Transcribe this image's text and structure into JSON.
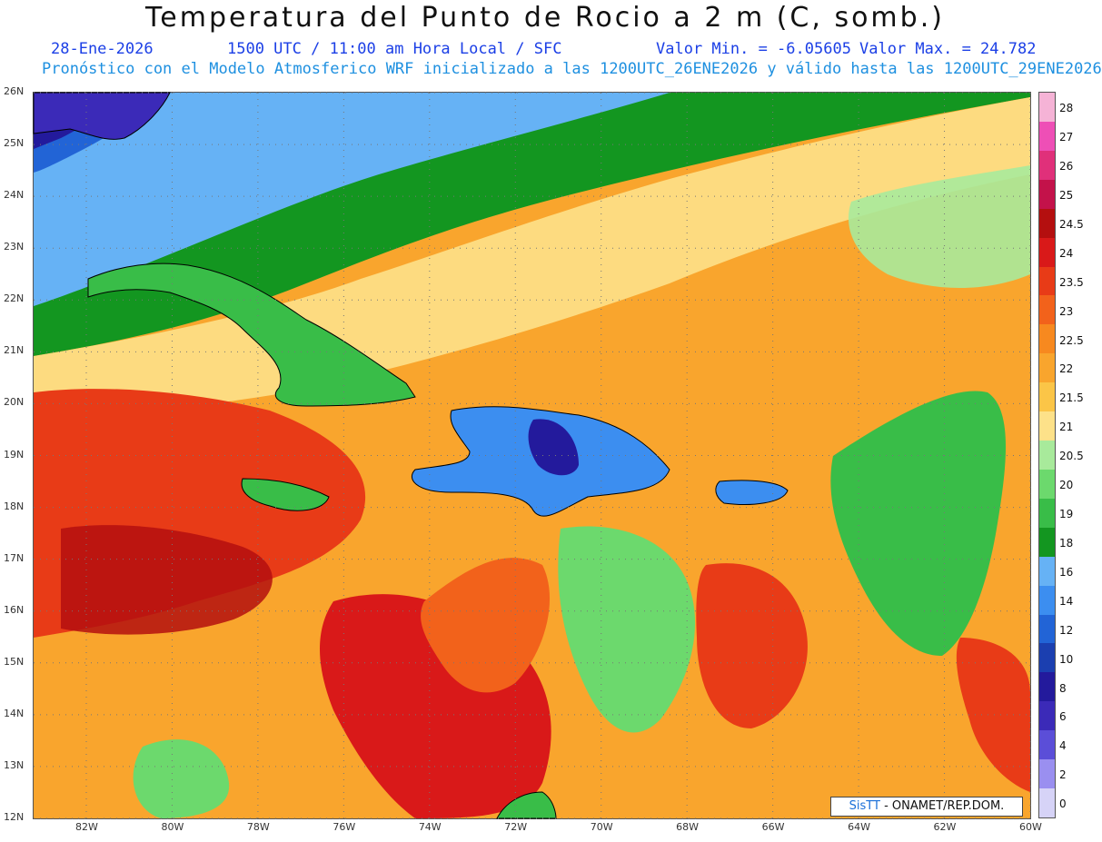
{
  "title": "Temperatura del Punto de Rocio a 2 m (C, somb.)",
  "info_line": {
    "date": "28-Ene-2026",
    "time": "1500 UTC / 11:00 am Hora Local / SFC",
    "min": "Valor Min. = -6.05605",
    "max": "Valor Max. = 24.782"
  },
  "model_line": "Pronóstico con el Modelo Atmosferico WRF inicializado a las 1200UTC_26ENE2026 y válido hasta las  1200UTC_29ENE2026",
  "map": {
    "lat_labels": [
      "26N",
      "25N",
      "24N",
      "23N",
      "22N",
      "21N",
      "20N",
      "19N",
      "18N",
      "17N",
      "16N",
      "15N",
      "14N",
      "13N",
      "12N"
    ],
    "lon_labels": [
      "82W",
      "80W",
      "78W",
      "76W",
      "74W",
      "72W",
      "70W",
      "68W",
      "66W",
      "64W",
      "62W",
      "60W"
    ]
  },
  "colorbar": {
    "labels": [
      "28",
      "27",
      "26",
      "25",
      "24.5",
      "24",
      "23.5",
      "23",
      "22.5",
      "22",
      "21.5",
      "21",
      "20.5",
      "20",
      "19",
      "18",
      "16",
      "14",
      "12",
      "10",
      "8",
      "6",
      "4",
      "2",
      "0"
    ],
    "colors": [
      "#f5b3d6",
      "#ee4fb6",
      "#e0307a",
      "#c3124a",
      "#b40f0f",
      "#d91919",
      "#e83b17",
      "#f2621b",
      "#f7891f",
      "#f9a52d",
      "#fbc547",
      "#fde189",
      "#a8ea9b",
      "#6cd96d",
      "#39bd48",
      "#139620",
      "#66b2f5",
      "#3c8ef0",
      "#2264d6",
      "#1b3fb0",
      "#231a9c",
      "#3b2ab8",
      "#5b4ed8",
      "#9a8ff0",
      "#d6d3f7"
    ]
  },
  "credit": {
    "logo": "SisTT",
    "text": " - ONAMET/REP.DOM."
  }
}
